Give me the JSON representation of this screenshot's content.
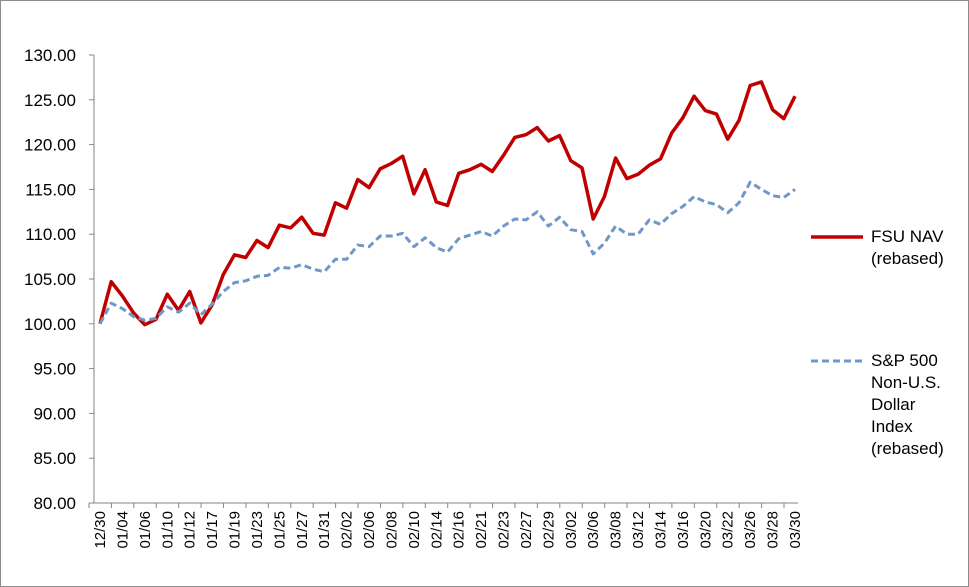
{
  "chart_data": {
    "type": "line",
    "title": "",
    "xlabel": "",
    "ylabel": "",
    "ylim": [
      80,
      130
    ],
    "yticks": [
      "80.00",
      "85.00",
      "90.00",
      "95.00",
      "100.00",
      "105.00",
      "110.00",
      "115.00",
      "120.00",
      "125.00",
      "130.00"
    ],
    "xtick_labels": [
      "12/30",
      "01/04",
      "01/06",
      "01/10",
      "01/12",
      "01/17",
      "01/19",
      "01/23",
      "01/25",
      "01/27",
      "01/31",
      "02/02",
      "02/06",
      "02/08",
      "02/10",
      "02/14",
      "02/16",
      "02/21",
      "02/23",
      "02/27",
      "02/29",
      "03/02",
      "03/06",
      "03/08",
      "03/12",
      "03/14",
      "03/16",
      "03/20",
      "03/22",
      "03/26",
      "03/28",
      "03/30"
    ],
    "grid": false,
    "legend_position": "right",
    "series": [
      {
        "name": "FSU NAV (rebased)",
        "legend_lines": [
          "FSU NAV",
          "(rebased)"
        ],
        "color": "#c00000",
        "style": "solid",
        "values": [
          100.0,
          104.7,
          103.1,
          101.2,
          99.9,
          100.5,
          103.3,
          101.5,
          103.6,
          100.1,
          102.1,
          105.5,
          107.7,
          107.4,
          109.3,
          108.5,
          111.0,
          110.7,
          111.9,
          110.1,
          109.9,
          113.5,
          112.9,
          116.1,
          115.2,
          117.3,
          117.9,
          118.7,
          114.5,
          117.2,
          113.6,
          113.2,
          116.8,
          117.2,
          117.8,
          117.0,
          118.8,
          120.8,
          121.1,
          121.9,
          120.4,
          121.0,
          118.2,
          117.4,
          111.7,
          114.2,
          118.5,
          116.2,
          116.7,
          117.7,
          118.4,
          121.3,
          123.0,
          125.4,
          123.8,
          123.4,
          120.6,
          122.7,
          126.6,
          127.0,
          123.9,
          122.9,
          125.4
        ]
      },
      {
        "name": "S&P 500 Non-U.S. Dollar Index (rebased)",
        "legend_lines": [
          "S&P 500",
          "Non-U.S.",
          "Dollar",
          "Index",
          "(rebased)"
        ],
        "color": "#6f98c8",
        "style": "dashed",
        "values": [
          100.0,
          102.3,
          101.7,
          100.8,
          100.4,
          100.6,
          101.9,
          101.3,
          102.3,
          101.0,
          102.2,
          103.6,
          104.6,
          104.8,
          105.3,
          105.4,
          106.3,
          106.2,
          106.6,
          106.1,
          105.8,
          107.2,
          107.2,
          108.8,
          108.6,
          109.8,
          109.8,
          110.1,
          108.6,
          109.6,
          108.5,
          108.0,
          109.5,
          109.9,
          110.3,
          109.8,
          110.9,
          111.7,
          111.6,
          112.5,
          110.9,
          111.9,
          110.5,
          110.3,
          107.8,
          109.0,
          110.9,
          110.0,
          110.0,
          111.6,
          111.1,
          112.3,
          113.1,
          114.2,
          113.6,
          113.3,
          112.4,
          113.5,
          115.8,
          115.0,
          114.3,
          114.1,
          115.0
        ]
      }
    ]
  }
}
